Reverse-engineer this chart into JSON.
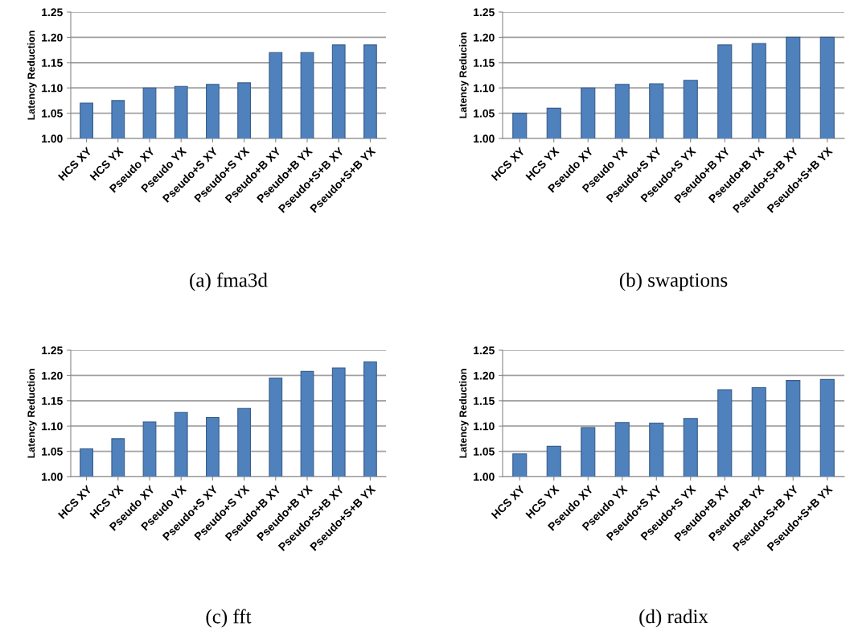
{
  "chart_data": [
    {
      "type": "bar",
      "title": "(a) fma3d",
      "ylabel": "Latency Reduction",
      "categories": [
        "HCS XY",
        "HCS YX",
        "Pseudo XY",
        "Pseudo YX",
        "Pseudo+S XY",
        "Pseudo+S YX",
        "Pseudo+B XY",
        "Pseudo+B YX",
        "Pseudo+S+B XY",
        "Pseudo+S+B YX"
      ],
      "color": "#4f81bd",
      "values": [
        1.07,
        1.075,
        1.1,
        1.103,
        1.107,
        1.11,
        1.17,
        1.17,
        1.185,
        1.185
      ],
      "ylim": [
        1.0,
        1.25
      ],
      "yticks": [
        {
          "value": 1.0,
          "label": "1.00"
        },
        {
          "value": 1.05,
          "label": "1.05"
        },
        {
          "value": 1.1,
          "label": "1.10"
        },
        {
          "value": 1.15,
          "label": "1.15"
        },
        {
          "value": 1.2,
          "label": "1.20"
        },
        {
          "value": 1.25,
          "label": "1.25"
        }
      ],
      "grid": "y"
    },
    {
      "type": "bar",
      "title": "(b) swaptions",
      "ylabel": "Latency Reducion",
      "categories": [
        "HCS XY",
        "HCS YX",
        "Pseudo XY",
        "Pseudo YX",
        "Pseudo+S XY",
        "Pseudo+S YX",
        "Pseudo+B XY",
        "Pseudo+B YX",
        "Pseudo+S+B XY",
        "Pseudo+S+B YX"
      ],
      "color": "#4f81bd",
      "values": [
        1.05,
        1.06,
        1.1,
        1.107,
        1.108,
        1.115,
        1.185,
        1.188,
        1.2,
        1.2
      ],
      "ylim": [
        1.0,
        1.25
      ],
      "yticks": [
        {
          "value": 1.0,
          "label": "1.00"
        },
        {
          "value": 1.05,
          "label": "1.05"
        },
        {
          "value": 1.1,
          "label": "1.10"
        },
        {
          "value": 1.15,
          "label": "1.15"
        },
        {
          "value": 1.2,
          "label": "1.20"
        },
        {
          "value": 1.25,
          "label": "1.25"
        }
      ],
      "grid": "y"
    },
    {
      "type": "bar",
      "title": "(c) fft",
      "ylabel": "Latency Reduction",
      "categories": [
        "HCS XY",
        "HCS YX",
        "Pseudo XY",
        "Pseudo YX",
        "Pseudo+S XY",
        "Pseudo+S YX",
        "Pseudo+B XY",
        "Pseudo+B YX",
        "Pseudo+S+B XY",
        "Pseudo+S+B YX"
      ],
      "color": "#4f81bd",
      "values": [
        1.055,
        1.075,
        1.108,
        1.127,
        1.117,
        1.135,
        1.195,
        1.208,
        1.215,
        1.227
      ],
      "ylim": [
        1.0,
        1.25
      ],
      "yticks": [
        {
          "value": 1.0,
          "label": "1.00"
        },
        {
          "value": 1.05,
          "label": "1.05"
        },
        {
          "value": 1.1,
          "label": "1.10"
        },
        {
          "value": 1.15,
          "label": "1.15"
        },
        {
          "value": 1.2,
          "label": "1.20"
        },
        {
          "value": 1.25,
          "label": "1.25"
        }
      ],
      "grid": "y"
    },
    {
      "type": "bar",
      "title": "(d) radix",
      "ylabel": "Latency Reduction",
      "categories": [
        "HCS XY",
        "HCS YX",
        "Pseudo XY",
        "Pseudo YX",
        "Pseudo+S XY",
        "Pseudo+S YX",
        "Pseudo+B XY",
        "Pseudo+B YX",
        "Pseudo+S+B XY",
        "Pseudo+S+B YX"
      ],
      "color": "#4f81bd",
      "values": [
        1.045,
        1.06,
        1.097,
        1.107,
        1.106,
        1.115,
        1.172,
        1.176,
        1.19,
        1.192
      ],
      "ylim": [
        1.0,
        1.25
      ],
      "yticks": [
        {
          "value": 1.0,
          "label": "1.00"
        },
        {
          "value": 1.05,
          "label": "1.05"
        },
        {
          "value": 1.1,
          "label": "1.10"
        },
        {
          "value": 1.15,
          "label": "1.15"
        },
        {
          "value": 1.2,
          "label": "1.20"
        },
        {
          "value": 1.25,
          "label": "1.25"
        }
      ],
      "grid": "y"
    }
  ]
}
